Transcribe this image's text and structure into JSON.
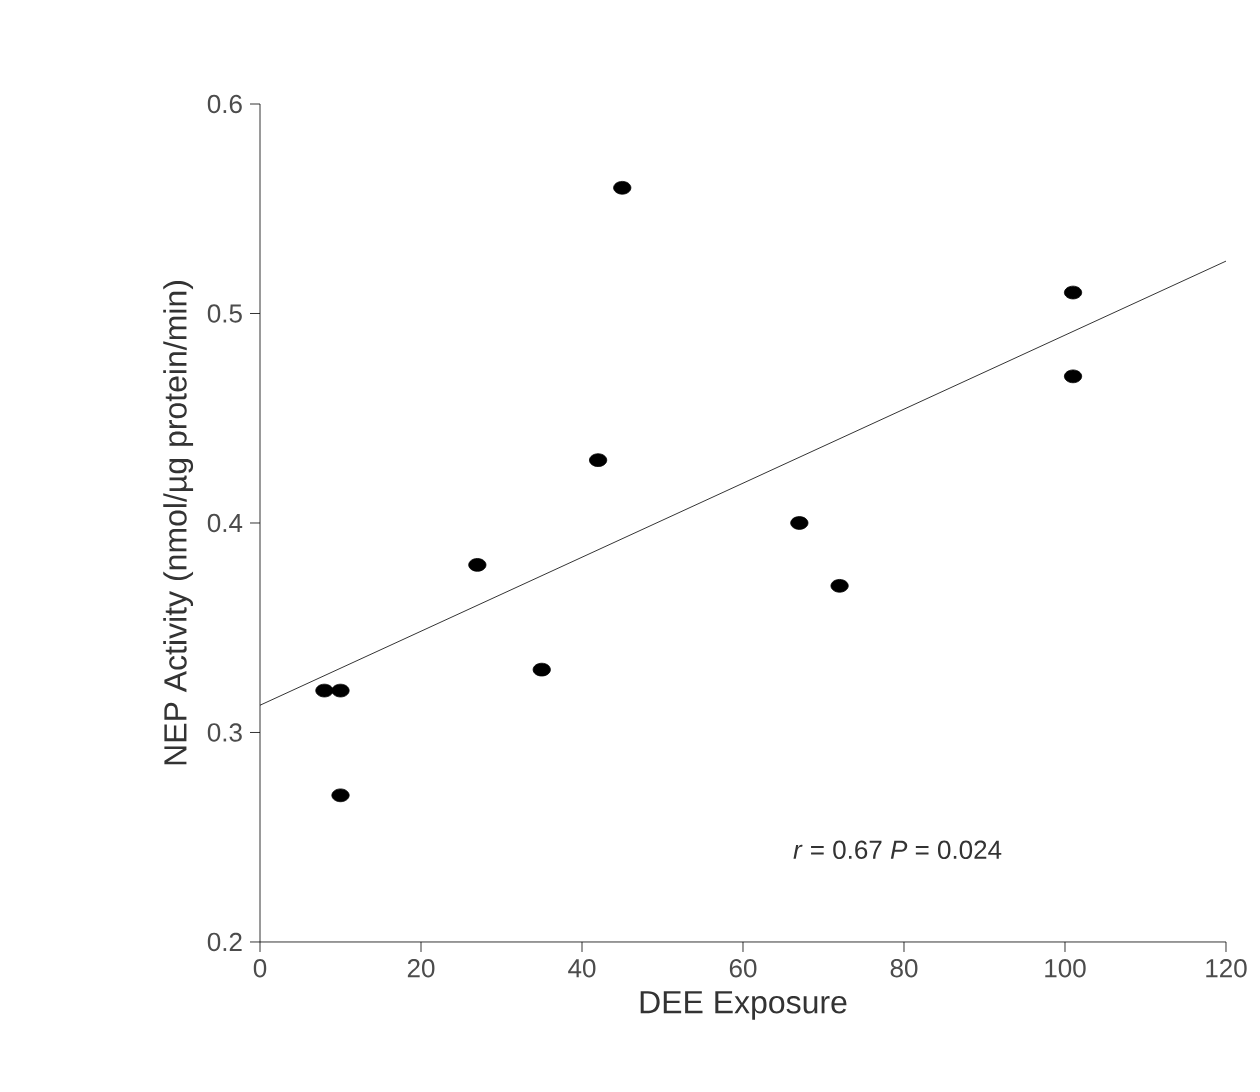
{
  "chart_data": {
    "type": "scatter",
    "xlabel": "DEE Exposure",
    "ylabel": "NEP Activity (nmol/µg protein/min)",
    "xlim": [
      0,
      120
    ],
    "xticks": [
      0,
      20,
      40,
      60,
      80,
      100,
      120
    ],
    "ylim": [
      0.2,
      0.6
    ],
    "yticks": [
      0.2,
      0.3,
      0.4,
      0.5,
      0.6
    ],
    "marker": "circle",
    "grid": false,
    "annotations": [
      "*r* = 0.67   *P* = 0.024"
    ],
    "series": [
      {
        "color": "#000000",
        "x": [
          8,
          10,
          10,
          27,
          35,
          42,
          45,
          67,
          72,
          101,
          101
        ],
        "values": [
          0.32,
          0.32,
          0.27,
          0.38,
          0.33,
          0.43,
          0.56,
          0.4,
          0.37,
          0.51,
          0.47
        ]
      },
      {
        "type": "line",
        "marker": "none",
        "color": "#000000",
        "x": [
          0,
          120
        ],
        "values": [
          0.313,
          0.525
        ]
      }
    ]
  }
}
